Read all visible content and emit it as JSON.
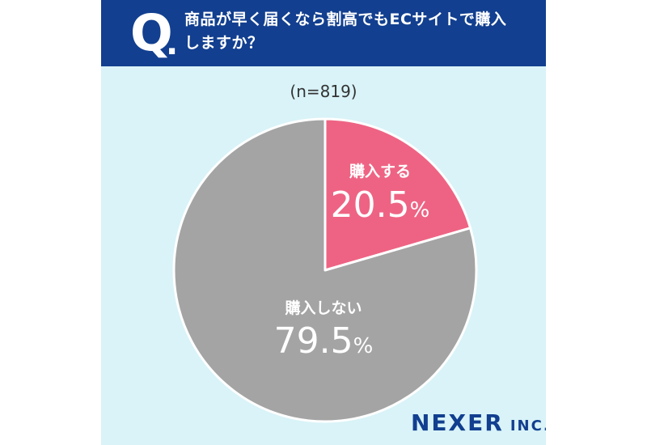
{
  "question": {
    "mark": "Q",
    "dot": ".",
    "lines": [
      "商品が早く届くなら割高でもECサイトで購入",
      "しますか？"
    ]
  },
  "sample_size": "(n=819)",
  "logo": {
    "main": "NEXER",
    "sub": "INC."
  },
  "colors": {
    "header": "#123f8f",
    "background": "#d9f3f8",
    "buy": "#ee6383",
    "not_buy": "#a4a4a4"
  },
  "chart_data": {
    "type": "pie",
    "title": "商品が早く届くなら割高でもECサイトで購入しますか？",
    "slices": [
      {
        "label": "購入する",
        "value": 20.5,
        "value_text": "20.5",
        "unit": "%",
        "color": "#ee6383"
      },
      {
        "label": "購入しない",
        "value": 79.5,
        "value_text": "79.5",
        "unit": "%",
        "color": "#a4a4a4"
      }
    ],
    "start_angle": "12 o'clock",
    "direction": "clockwise"
  }
}
